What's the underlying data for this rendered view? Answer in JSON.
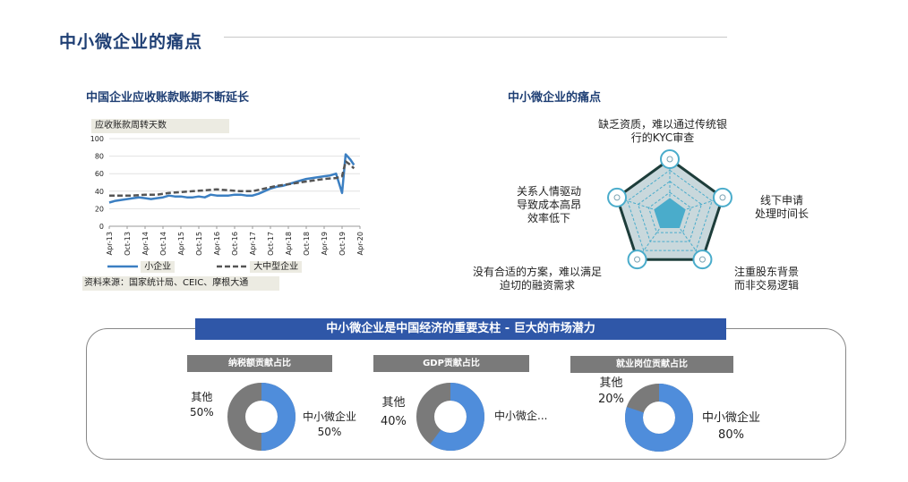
{
  "page": {
    "title": "中小微企业的痛点"
  },
  "left_chart": {
    "title": "中国企业应收账款账期不断延长",
    "ylabel": "应收账款周转天数",
    "source": "资料来源：国家统计局、CEIC、摩根大通",
    "legend": {
      "small": "小企业",
      "large": "大中型企业"
    }
  },
  "chart_data": {
    "type": "line",
    "ylim": [
      0,
      100
    ],
    "yticks": [
      "0",
      "20",
      "40",
      "60",
      "80",
      "100"
    ],
    "xticks": [
      "Apr-13",
      "Oct-13",
      "Apr-14",
      "Oct-14",
      "Apr-15",
      "Oct-15",
      "Apr-16",
      "Oct-16",
      "Apr-17",
      "Oct-17",
      "Apr-18",
      "Oct-18",
      "Apr-19",
      "Oct-19",
      "Apr-20"
    ],
    "grid": true,
    "series": [
      {
        "name": "小企业",
        "color": "#3b7fc2",
        "style": "solid",
        "points": [
          [
            0,
            27
          ],
          [
            1,
            29
          ],
          [
            2,
            30
          ],
          [
            3,
            31
          ],
          [
            4,
            32
          ],
          [
            5,
            33
          ],
          [
            6,
            32
          ],
          [
            7,
            31
          ],
          [
            8,
            32
          ],
          [
            9,
            33
          ],
          [
            10,
            35
          ],
          [
            11,
            34
          ],
          [
            12,
            34
          ],
          [
            13,
            33
          ],
          [
            14,
            33
          ],
          [
            15,
            34
          ],
          [
            16,
            33
          ],
          [
            17,
            36
          ],
          [
            18,
            35
          ],
          [
            19,
            35
          ],
          [
            20,
            35
          ],
          [
            21,
            36
          ],
          [
            22,
            36
          ],
          [
            23,
            35
          ],
          [
            24,
            35
          ],
          [
            25,
            37
          ],
          [
            26,
            40
          ],
          [
            27,
            43
          ],
          [
            28,
            45
          ],
          [
            29,
            46
          ],
          [
            30,
            48
          ],
          [
            31,
            50
          ],
          [
            32,
            52
          ],
          [
            33,
            54
          ],
          [
            34,
            55
          ],
          [
            35,
            56
          ],
          [
            36,
            57
          ],
          [
            37,
            58
          ],
          [
            38,
            60
          ],
          [
            39,
            38
          ],
          [
            39.6,
            82
          ],
          [
            40.4,
            76
          ],
          [
            41,
            70
          ]
        ]
      },
      {
        "name": "大中型企业",
        "color": "#555555",
        "style": "dashed",
        "points": [
          [
            0,
            35
          ],
          [
            2,
            35
          ],
          [
            4,
            35
          ],
          [
            6,
            36
          ],
          [
            8,
            36
          ],
          [
            10,
            38
          ],
          [
            12,
            39
          ],
          [
            14,
            40
          ],
          [
            16,
            41
          ],
          [
            18,
            42
          ],
          [
            20,
            41
          ],
          [
            22,
            40
          ],
          [
            24,
            40
          ],
          [
            26,
            43
          ],
          [
            28,
            46
          ],
          [
            30,
            48
          ],
          [
            32,
            50
          ],
          [
            34,
            52
          ],
          [
            36,
            54
          ],
          [
            38,
            55
          ],
          [
            39,
            57
          ],
          [
            39.6,
            74
          ],
          [
            40.4,
            70
          ],
          [
            41,
            66
          ]
        ]
      }
    ]
  },
  "radar": {
    "title": "中小微企业的痛点",
    "labels": {
      "top_1": "缺乏资质，难以通过传统银",
      "top_2": "行的KYC审查",
      "right_1": "线下申请",
      "right_2": "处理时间长",
      "bottom_right_1": "注重股东背景",
      "bottom_right_2": "而非交易逻辑",
      "bottom_left_1": "没有合适的方案，难以满足",
      "bottom_left_2": "迫切的融资需求",
      "left_1": "关系人情驱动",
      "left_2": "导致成本高昂",
      "left_3": "效率低下"
    },
    "colors": {
      "outer": "#1d3d3a",
      "fill": "#c9d8dc",
      "inner": "#4aaccb",
      "grid": "#4aaccb"
    }
  },
  "bottom": {
    "banner": "中小微企业是中国经济的重要支柱 - 巨大的市场潜力",
    "donuts": [
      {
        "title": "纳税额贡献占比",
        "sme_label": "中小微企业",
        "sme_pct": "50%",
        "other_label": "其他",
        "other_pct": "50%",
        "sme_value": 50
      },
      {
        "title": "GDP贡献占比",
        "sme_label": "中小微企...",
        "sme_pct": "",
        "other_label": "其他",
        "other_pct": "40%",
        "sme_value": 60
      },
      {
        "title": "就业岗位贡献占比",
        "sme_label": "中小微企业",
        "sme_pct": "80%",
        "other_label": "其他",
        "other_pct": "20%",
        "sme_value": 80
      }
    ],
    "colors": {
      "sme": "#4f8ddb",
      "other": "#7a7a7a"
    }
  }
}
